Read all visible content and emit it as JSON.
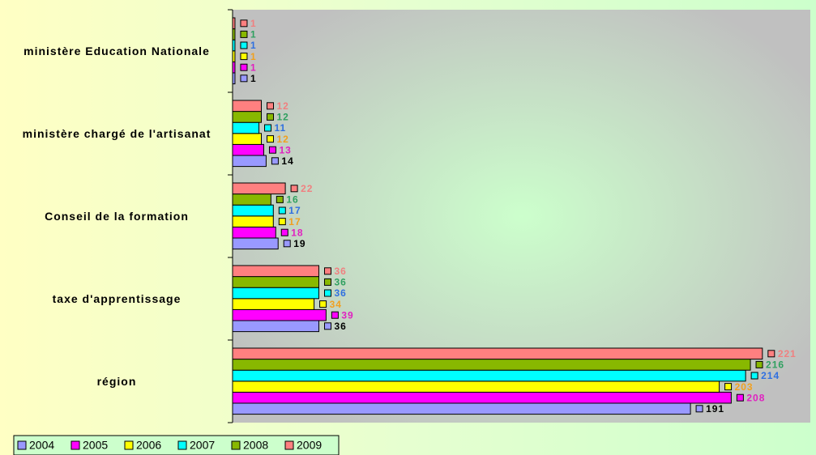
{
  "chart_data": {
    "type": "hbar",
    "categories": [
      "ministère Education Nationale",
      "ministère chargé de l'artisanat",
      "Conseil de la formation",
      "taxe d'apprentissage",
      "région"
    ],
    "series": [
      {
        "name": "2004",
        "color": "#9999ff",
        "label_color": "#000000",
        "values": [
          1,
          14,
          19,
          36,
          191
        ]
      },
      {
        "name": "2005",
        "color": "#ff00ff",
        "label_color": "#e020c0",
        "values": [
          1,
          13,
          18,
          39,
          208
        ]
      },
      {
        "name": "2006",
        "color": "#ffff00",
        "label_color": "#f0a020",
        "values": [
          1,
          12,
          17,
          34,
          203
        ]
      },
      {
        "name": "2007",
        "color": "#00ffff",
        "label_color": "#3070e0",
        "values": [
          1,
          11,
          17,
          36,
          214
        ]
      },
      {
        "name": "2008",
        "color": "#88b800",
        "label_color": "#30a060",
        "values": [
          1,
          12,
          16,
          36,
          216
        ]
      },
      {
        "name": "2009",
        "color": "#ff8080",
        "label_color": "#f08080",
        "values": [
          1,
          12,
          22,
          36,
          221
        ]
      }
    ],
    "xlim": [
      0,
      241
    ],
    "legend": "bottom-left"
  }
}
